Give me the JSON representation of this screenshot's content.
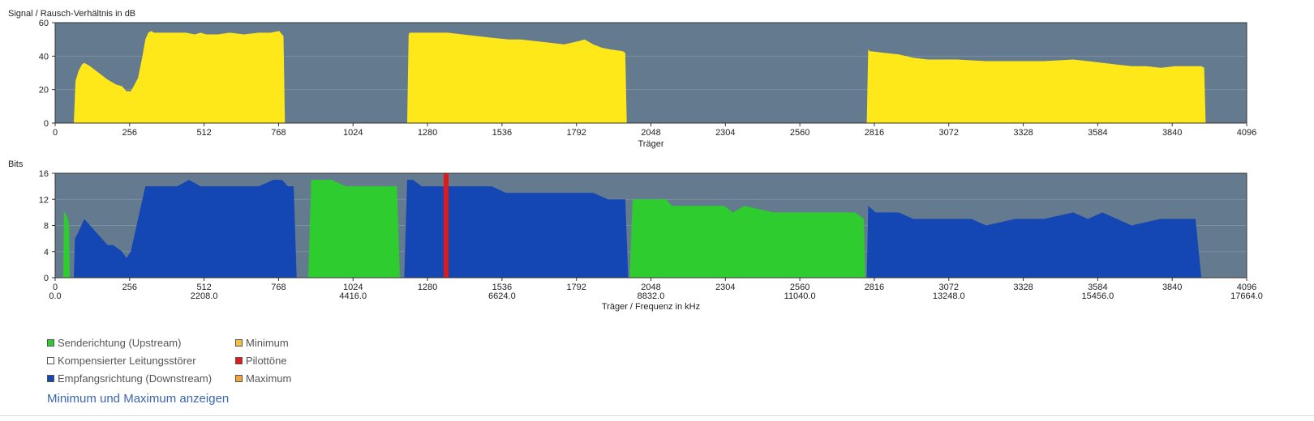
{
  "chart_data": [
    {
      "type": "area",
      "title": "Signal / Rausch-Verhältnis in dB",
      "xlabel": "Träger",
      "xlim": [
        0,
        4096
      ],
      "ylim": [
        0,
        60
      ],
      "xticks": [
        0,
        256,
        512,
        768,
        1024,
        1280,
        1536,
        1792,
        2048,
        2304,
        2560,
        2816,
        3072,
        3328,
        3584,
        3840,
        4096
      ],
      "yticks": [
        0,
        20,
        40,
        60
      ],
      "grid": true,
      "colors": {
        "background": "#647a8f",
        "fill": "#ffe81a",
        "grid": "#7c8fa1"
      },
      "series": [
        {
          "x": [
            64,
            70,
            80,
            92,
            100,
            120,
            150,
            180,
            210,
            230,
            245,
            260,
            270,
            285,
            300,
            310,
            320,
            330,
            340,
            360,
            400,
            450,
            480,
            500,
            520,
            560,
            600,
            650,
            700,
            740,
            770,
            780,
            785,
            790
          ],
          "y": [
            0,
            25,
            31,
            35,
            36,
            34,
            30,
            26,
            23,
            22,
            19,
            19,
            22,
            27,
            40,
            50,
            54,
            55,
            54,
            54,
            54,
            54,
            53,
            54,
            53,
            53,
            54,
            53,
            54,
            54,
            55,
            53,
            52,
            0
          ]
        },
        {
          "x": [
            1210,
            1215,
            1220,
            1300,
            1350,
            1400,
            1450,
            1500,
            1560,
            1600,
            1650,
            1700,
            1750,
            1800,
            1820,
            1850,
            1880,
            1910,
            1950,
            1960,
            1965
          ],
          "y": [
            0,
            53,
            54,
            54,
            54,
            53,
            52,
            51,
            50,
            50,
            49,
            48,
            47,
            49,
            50,
            47,
            45,
            44,
            43,
            42,
            0
          ]
        },
        {
          "x": [
            2790,
            2795,
            2800,
            2850,
            2900,
            2950,
            3000,
            3100,
            3200,
            3300,
            3400,
            3500,
            3550,
            3600,
            3650,
            3700,
            3750,
            3800,
            3850,
            3940,
            3950,
            3955
          ],
          "y": [
            0,
            44,
            43,
            42,
            41,
            39,
            38,
            38,
            37,
            37,
            37,
            38,
            37,
            36,
            35,
            34,
            34,
            33,
            34,
            34,
            33,
            0
          ]
        }
      ]
    },
    {
      "type": "area",
      "title": "Bits",
      "xlabel": "Träger / Frequenz in kHz",
      "xlim": [
        0,
        4096
      ],
      "ylim": [
        0,
        16
      ],
      "xticks": [
        0,
        256,
        512,
        768,
        1024,
        1280,
        1536,
        1792,
        2048,
        2304,
        2560,
        2816,
        3072,
        3328,
        3584,
        3840,
        4096
      ],
      "xticks_secondary": [
        "0.0",
        "2208.0",
        "4416.0",
        "6624.0",
        "8832.0",
        "11040.0",
        "13248.0",
        "15456.0",
        "17664.0"
      ],
      "yticks": [
        0,
        4,
        8,
        12,
        16
      ],
      "grid": true,
      "colors": {
        "background": "#647a8f",
        "upstream": "#2ecc2e",
        "downstream": "#1446b4",
        "pilot": "#e01919",
        "grid": "#7c8fa1"
      },
      "series": [
        {
          "name": "Senderichtung (Upstream)",
          "color": "#2ecc2e",
          "x": [
            28,
            30,
            34,
            44,
            48,
            50
          ],
          "y": [
            0,
            10,
            10,
            9,
            8,
            0
          ]
        },
        {
          "name": "Empfangsrichtung (Downstream)",
          "color": "#1446b4",
          "x": [
            64,
            68,
            80,
            100,
            120,
            140,
            160,
            180,
            200,
            230,
            245,
            260,
            270,
            290,
            310,
            320,
            340,
            380,
            420,
            460,
            500,
            600,
            700,
            750,
            780,
            800,
            820,
            830
          ],
          "y": [
            0,
            6,
            7,
            9,
            8,
            7,
            6,
            5,
            5,
            4,
            3,
            4,
            6,
            10,
            14,
            14,
            14,
            14,
            14,
            15,
            14,
            14,
            14,
            15,
            15,
            14,
            14,
            0
          ]
        },
        {
          "name": "Senderichtung (Upstream)",
          "color": "#2ecc2e",
          "x": [
            870,
            880,
            900,
            950,
            1000,
            1050,
            1100,
            1150,
            1175,
            1185
          ],
          "y": [
            0,
            15,
            15,
            15,
            14,
            14,
            14,
            14,
            14,
            0
          ]
        },
        {
          "name": "Empfangsrichtung (Downstream)",
          "color": "#1446b4",
          "x": [
            1200,
            1210,
            1230,
            1260,
            1300,
            1350,
            1400,
            1450,
            1500,
            1550,
            1600,
            1650,
            1700,
            1750,
            1800,
            1850,
            1900,
            1950,
            1960,
            1970
          ],
          "y": [
            0,
            15,
            15,
            14,
            14,
            14,
            14,
            14,
            14,
            13,
            13,
            13,
            13,
            13,
            13,
            13,
            12,
            12,
            12,
            0
          ]
        },
        {
          "name": "Senderichtung (Upstream)",
          "color": "#2ecc2e",
          "x": [
            1975,
            1985,
            2100,
            2120,
            2300,
            2330,
            2370,
            2470,
            2750,
            2780,
            2785
          ],
          "y": [
            0,
            12,
            12,
            11,
            11,
            10,
            11,
            10,
            10,
            9,
            0
          ]
        },
        {
          "name": "Empfangsrichtung (Downstream)",
          "color": "#1446b4",
          "x": [
            2790,
            2795,
            2820,
            2850,
            2900,
            2950,
            3000,
            3050,
            3100,
            3150,
            3200,
            3300,
            3400,
            3500,
            3550,
            3600,
            3650,
            3700,
            3800,
            3850,
            3920,
            3940
          ],
          "y": [
            0,
            11,
            10,
            10,
            10,
            9,
            9,
            9,
            9,
            9,
            8,
            9,
            9,
            10,
            9,
            10,
            9,
            8,
            9,
            9,
            9,
            0
          ]
        }
      ],
      "pilot_carrier": 1344
    }
  ],
  "legend": {
    "col1": [
      {
        "label": "Senderichtung (Upstream)",
        "color": "#2ecc2e"
      },
      {
        "label": "Kompensierter Leitungsstörer",
        "color": "#ffffff"
      },
      {
        "label": "Empfangsrichtung (Downstream)",
        "color": "#1446b4"
      }
    ],
    "col2": [
      {
        "label": "Minimum",
        "color": "#f3c23a"
      },
      {
        "label": "Pilottöne",
        "color": "#e01919"
      },
      {
        "label": "Maximum",
        "color": "#f3a23a"
      }
    ]
  },
  "toggle_link": "Minimum und Maximum anzeigen"
}
